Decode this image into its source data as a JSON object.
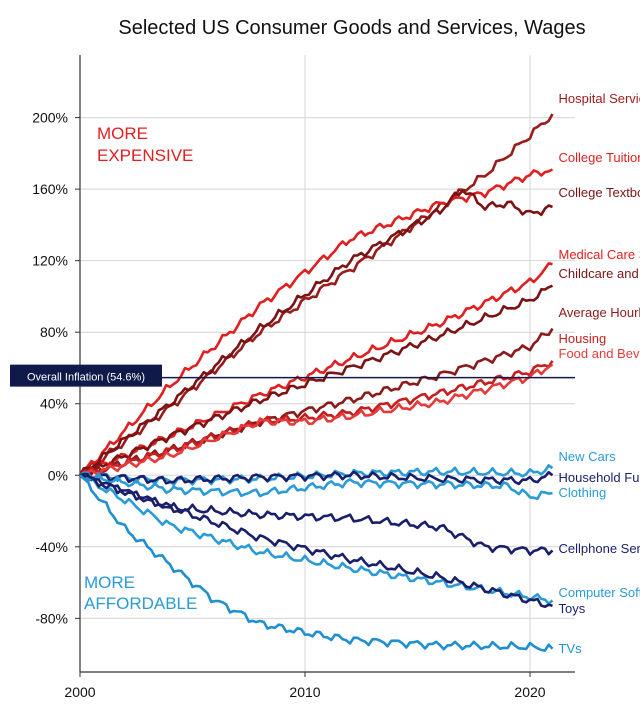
{
  "chart_data": {
    "type": "line",
    "title": "Selected US Consumer Goods and Services, Wages",
    "xlabel": "",
    "ylabel": "",
    "xlim": [
      2000,
      2022
    ],
    "ylim": [
      -110,
      235
    ],
    "x_ticks": [
      2000,
      2010,
      2020
    ],
    "y_ticks": [
      200,
      160,
      120,
      80,
      40,
      0,
      -40,
      -80
    ],
    "y_tick_labels": [
      "200%",
      "160%",
      "120%",
      "80%",
      "40%",
      "0%",
      "-40%",
      "-80%"
    ],
    "grid": true,
    "annotations": {
      "more_expensive": [
        "MORE",
        "EXPENSIVE"
      ],
      "more_affordable": [
        "MORE",
        "AFFORDABLE"
      ],
      "overall_inflation": {
        "label": "Overall Inflation (54.6%)",
        "value": 54.6
      }
    },
    "series": [
      {
        "name": "Hospital Services",
        "color": "#9b1b1b",
        "x": [
          2000,
          2004,
          2008,
          2012,
          2016,
          2018,
          2020,
          2021
        ],
        "y": [
          0,
          38,
          80,
          115,
          150,
          168,
          190,
          202
        ]
      },
      {
        "name": "College Tuition and Fees",
        "color": "#e02020",
        "x": [
          2000,
          2004,
          2008,
          2012,
          2016,
          2018,
          2020,
          2021
        ],
        "y": [
          0,
          50,
          95,
          132,
          152,
          158,
          168,
          171
        ]
      },
      {
        "name": "College Textbooks",
        "color": "#7a1414",
        "x": [
          2000,
          2004,
          2008,
          2012,
          2016,
          2017,
          2018,
          2019,
          2020,
          2021
        ],
        "y": [
          0,
          40,
          82,
          120,
          148,
          160,
          150,
          152,
          146,
          150
        ]
      },
      {
        "name": "Medical Care Services",
        "color": "#e02020",
        "x": [
          2000,
          2004,
          2008,
          2012,
          2016,
          2020,
          2021
        ],
        "y": [
          0,
          22,
          45,
          65,
          85,
          108,
          118
        ]
      },
      {
        "name": "Childcare and Nursery School",
        "color": "#7a1414",
        "x": [
          2000,
          2004,
          2008,
          2012,
          2016,
          2020,
          2021
        ],
        "y": [
          0,
          22,
          42,
          60,
          78,
          98,
          106
        ]
      },
      {
        "name": "Average Hourly Wages",
        "color": "#8b1a1a",
        "x": [
          2000,
          2004,
          2008,
          2012,
          2016,
          2020,
          2021
        ],
        "y": [
          0,
          14,
          30,
          42,
          56,
          72,
          82
        ]
      },
      {
        "name": "Housing",
        "color": "#c41e1e",
        "x": [
          2000,
          2004,
          2008,
          2010,
          2012,
          2016,
          2020,
          2021
        ],
        "y": [
          0,
          14,
          30,
          32,
          35,
          46,
          58,
          64
        ]
      },
      {
        "name": "Food and Beverages",
        "color": "#e63a3a",
        "x": [
          2000,
          2004,
          2008,
          2010,
          2012,
          2016,
          2020,
          2021
        ],
        "y": [
          0,
          11,
          30,
          30,
          33,
          41,
          55,
          62
        ]
      },
      {
        "name": "New Cars",
        "color": "#2a9bd6",
        "x": [
          2000,
          2004,
          2008,
          2012,
          2016,
          2020,
          2021
        ],
        "y": [
          0,
          -3,
          -2,
          1,
          2,
          1,
          4
        ]
      },
      {
        "name": "Household Furnishings",
        "color": "#1a1f6b",
        "x": [
          2000,
          2004,
          2008,
          2012,
          2016,
          2020,
          2021
        ],
        "y": [
          0,
          -3,
          -1,
          0,
          -2,
          -3,
          0
        ]
      },
      {
        "name": "Clothing",
        "color": "#2a9bd6",
        "x": [
          2000,
          2004,
          2008,
          2012,
          2016,
          2019,
          2020,
          2021
        ],
        "y": [
          0,
          -8,
          -10,
          -4,
          -5,
          -6,
          -12,
          -10
        ]
      },
      {
        "name": "Cellphone Services",
        "color": "#1a1f6b",
        "x": [
          2000,
          2004,
          2008,
          2012,
          2016,
          2018,
          2020,
          2021
        ],
        "y": [
          0,
          -18,
          -22,
          -24,
          -29,
          -40,
          -42,
          -42
        ]
      },
      {
        "name": "Computer Software",
        "color": "#2a9bd6",
        "x": [
          2000,
          2004,
          2008,
          2012,
          2016,
          2020,
          2021
        ],
        "y": [
          0,
          -28,
          -43,
          -52,
          -60,
          -68,
          -70
        ]
      },
      {
        "name": "Toys",
        "color": "#1a1f6b",
        "x": [
          2000,
          2004,
          2008,
          2012,
          2016,
          2020,
          2021
        ],
        "y": [
          0,
          -18,
          -35,
          -47,
          -57,
          -70,
          -73
        ]
      },
      {
        "name": "TVs",
        "color": "#1f8fd0",
        "x": [
          2000,
          2002,
          2004,
          2006,
          2008,
          2010,
          2012,
          2016,
          2020,
          2021
        ],
        "y": [
          0,
          -30,
          -50,
          -70,
          -83,
          -88,
          -92,
          -95,
          -96,
          -97
        ]
      }
    ]
  }
}
